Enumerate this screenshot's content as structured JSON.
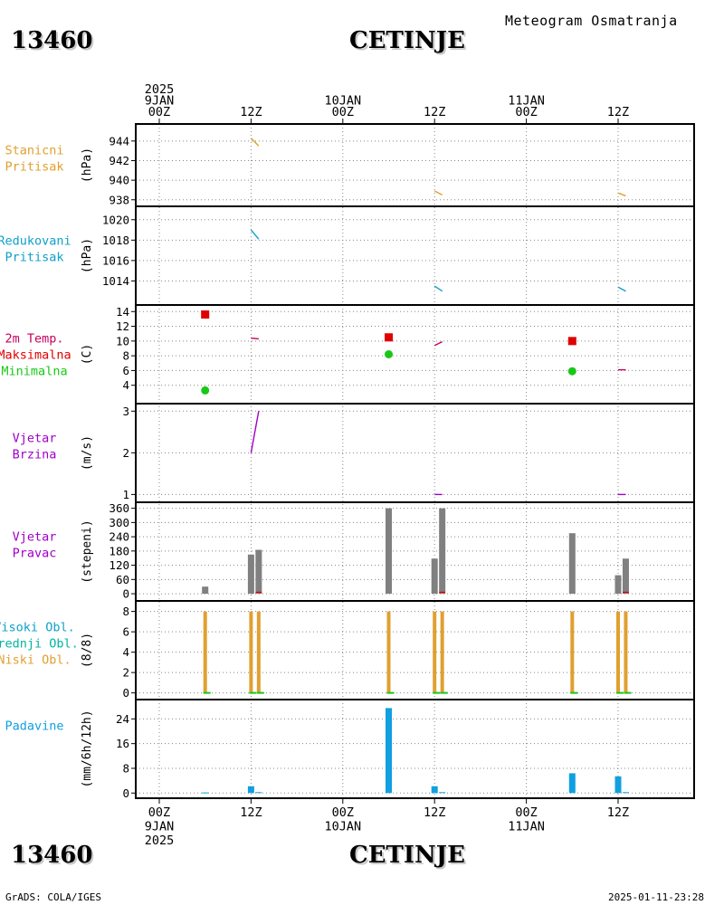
{
  "header": {
    "station_id": "13460",
    "station_name": "CETINJE",
    "meteogram_title": "Meteogram Osmatranja"
  },
  "footer": {
    "station_id": "13460",
    "station_name": "CETINJE",
    "credit": "GrADS: COLA/IGES",
    "timestamp": "2025-01-11-23:28"
  },
  "colors": {
    "orange": "#e0a030",
    "cyan": "#10a0c8",
    "crimson": "#c8005a",
    "red": "#e00000",
    "green": "#18c818",
    "purple": "#a000c8",
    "gray": "#808080",
    "blue": "#10a0e0",
    "teal": "#00b4a0"
  },
  "chart_data": {
    "type": "meteogram",
    "time_unit": "hours since 2025-01-09 00Z",
    "top_axis": [
      {
        "h": 0,
        "lines": [
          "2025",
          "9JAN",
          "00Z"
        ]
      },
      {
        "h": 12,
        "lines": [
          "12Z"
        ]
      },
      {
        "h": 24,
        "lines": [
          "10JAN",
          "00Z"
        ]
      },
      {
        "h": 36,
        "lines": [
          "12Z"
        ]
      },
      {
        "h": 48,
        "lines": [
          "11JAN",
          "00Z"
        ]
      },
      {
        "h": 60,
        "lines": [
          "12Z"
        ]
      }
    ],
    "bottom_axis": [
      {
        "h": 0,
        "lines": [
          "00Z",
          "9JAN",
          "2025"
        ]
      },
      {
        "h": 12,
        "lines": [
          "12Z"
        ]
      },
      {
        "h": 24,
        "lines": [
          "00Z",
          "10JAN"
        ]
      },
      {
        "h": 36,
        "lines": [
          "12Z"
        ]
      },
      {
        "h": 48,
        "lines": [
          "00Z",
          "11JAN"
        ]
      },
      {
        "h": 60,
        "lines": [
          "12Z"
        ]
      }
    ],
    "panels": [
      {
        "id": "pressure",
        "labels": [
          {
            "text": "Stanicni",
            "color": "#e0a030"
          },
          {
            "text": "Pritisak",
            "color": "#e0a030"
          }
        ],
        "unit": "(hPa)",
        "ylim": [
          937.7,
          945.0
        ],
        "yticks": [
          "938",
          "940",
          "942",
          "944"
        ],
        "segments": [
          {
            "color": "#e0a030",
            "points": [
              [
                12,
                944.3
              ],
              [
                13,
                943.5
              ]
            ]
          },
          {
            "color": "#e0a030",
            "points": [
              [
                36,
                938.9
              ],
              [
                37,
                938.5
              ]
            ]
          },
          {
            "color": "#e0a030",
            "points": [
              [
                60,
                938.7
              ],
              [
                61,
                938.4
              ]
            ]
          }
        ]
      },
      {
        "id": "reduced-pressure",
        "labels": [
          {
            "text": "Redukovani",
            "color": "#10a0c8"
          },
          {
            "text": "Pritisak",
            "color": "#10a0c8"
          }
        ],
        "unit": "(hPa)",
        "ylim": [
          1012.0,
          1020.6
        ],
        "yticks": [
          "1014",
          "1016",
          "1018",
          "1020"
        ],
        "segments": [
          {
            "color": "#10a0c8",
            "points": [
              [
                12,
                1019.0
              ],
              [
                13,
                1018.1
              ]
            ]
          },
          {
            "color": "#10a0c8",
            "points": [
              [
                36,
                1013.5
              ],
              [
                37,
                1013.0
              ]
            ]
          },
          {
            "color": "#10a0c8",
            "points": [
              [
                60,
                1013.4
              ],
              [
                61,
                1013.0
              ]
            ]
          }
        ]
      },
      {
        "id": "temperature",
        "labels": [
          {
            "text": "2m Temp.",
            "color": "#c8005a"
          },
          {
            "text": "Maksimalna",
            "color": "#e00000"
          },
          {
            "text": "Minimalna",
            "color": "#18c818"
          }
        ],
        "unit": "(C)",
        "ylim": [
          2.0,
          14.4
        ],
        "yticks": [
          "4",
          "6",
          "8",
          "10",
          "12",
          "14"
        ],
        "segments": [
          {
            "color": "#c8005a",
            "points": [
              [
                12,
                10.4
              ],
              [
                13,
                10.3
              ]
            ]
          },
          {
            "color": "#c8005a",
            "points": [
              [
                36,
                9.4
              ],
              [
                37,
                9.9
              ]
            ]
          },
          {
            "color": "#c8005a",
            "points": [
              [
                60,
                6.1
              ],
              [
                61,
                6.1
              ]
            ]
          }
        ],
        "max_points": [
          [
            6,
            13.6
          ],
          [
            30,
            10.5
          ],
          [
            54,
            10.0
          ]
        ],
        "min_points": [
          [
            6,
            3.3
          ],
          [
            30,
            8.2
          ],
          [
            54,
            5.9
          ]
        ]
      },
      {
        "id": "wind-speed",
        "labels": [
          {
            "text": "Vjetar",
            "color": "#a000c8"
          },
          {
            "text": "Brzina",
            "color": "#a000c8"
          }
        ],
        "unit": "(m/s)",
        "ylim": [
          0.9,
          3.05
        ],
        "yticks": [
          "1",
          "2",
          "3"
        ],
        "segments": [
          {
            "color": "#a000c8",
            "points": [
              [
                12,
                2.0
              ],
              [
                13,
                3.0
              ]
            ]
          },
          {
            "color": "#a000c8",
            "points": [
              [
                36,
                1.0
              ],
              [
                37,
                1.0
              ]
            ]
          },
          {
            "color": "#a000c8",
            "points": [
              [
                60,
                1.0
              ],
              [
                61,
                1.0
              ]
            ]
          }
        ]
      },
      {
        "id": "wind-direction",
        "labels": [
          {
            "text": "Vjetar",
            "color": "#a000c8"
          },
          {
            "text": "Pravac",
            "color": "#a000c8"
          }
        ],
        "unit": "(stepeni)",
        "ylim": [
          -15,
          370
        ],
        "yticks": [
          "0",
          "60",
          "120",
          "180",
          "240",
          "300",
          "360"
        ],
        "bars": [
          {
            "h": 6,
            "value": 30
          },
          {
            "h": 12,
            "value": 165
          },
          {
            "h": 13,
            "value": 185
          },
          {
            "h": 30,
            "value": 360
          },
          {
            "h": 36,
            "value": 148
          },
          {
            "h": 37,
            "value": 360
          },
          {
            "h": 54,
            "value": 255
          },
          {
            "h": 60,
            "value": 78
          },
          {
            "h": 61,
            "value": 148
          }
        ],
        "segments": [
          {
            "color": "#e00000",
            "points": [
              [
                12.6,
                6
              ],
              [
                13.4,
                6
              ]
            ]
          },
          {
            "color": "#e00000",
            "points": [
              [
                36.6,
                6
              ],
              [
                37.4,
                6
              ]
            ]
          },
          {
            "color": "#e00000",
            "points": [
              [
                60.6,
                6
              ],
              [
                61.4,
                6
              ]
            ]
          }
        ]
      },
      {
        "id": "clouds",
        "labels": [
          {
            "text": "Visoki Obl.",
            "color": "#10a0c8"
          },
          {
            "text": "Srednji Obl.",
            "color": "#00b4a0"
          },
          {
            "text": "Niski Obl.",
            "color": "#e0a030"
          }
        ],
        "unit": "(8/8)",
        "ylim": [
          -0.3,
          8.5
        ],
        "yticks": [
          "0",
          "2",
          "4",
          "6",
          "8"
        ],
        "low_bars": [
          {
            "h": 6,
            "value": 8
          },
          {
            "h": 12,
            "value": 8
          },
          {
            "h": 13,
            "value": 8
          },
          {
            "h": 30,
            "value": 8
          },
          {
            "h": 36,
            "value": 8
          },
          {
            "h": 37,
            "value": 8
          },
          {
            "h": 54,
            "value": 8
          },
          {
            "h": 60,
            "value": 8
          },
          {
            "h": 61,
            "value": 8
          }
        ]
      },
      {
        "id": "precipitation",
        "labels": [
          {
            "text": "Padavine",
            "color": "#10a0e0"
          }
        ],
        "unit": "(mm/6h/12h)",
        "ylim": [
          -0.5,
          28.5
        ],
        "yticks": [
          "0",
          "8",
          "16",
          "24"
        ],
        "bars": [
          {
            "h": 6,
            "value": 0.2
          },
          {
            "h": 12,
            "value": 2.2
          },
          {
            "h": 13,
            "value": 0.3
          },
          {
            "h": 30,
            "value": 27.5
          },
          {
            "h": 36,
            "value": 2.2
          },
          {
            "h": 37,
            "value": 0.3
          },
          {
            "h": 54,
            "value": 6.4
          },
          {
            "h": 60,
            "value": 5.4
          },
          {
            "h": 61,
            "value": 0.3
          }
        ]
      }
    ]
  }
}
